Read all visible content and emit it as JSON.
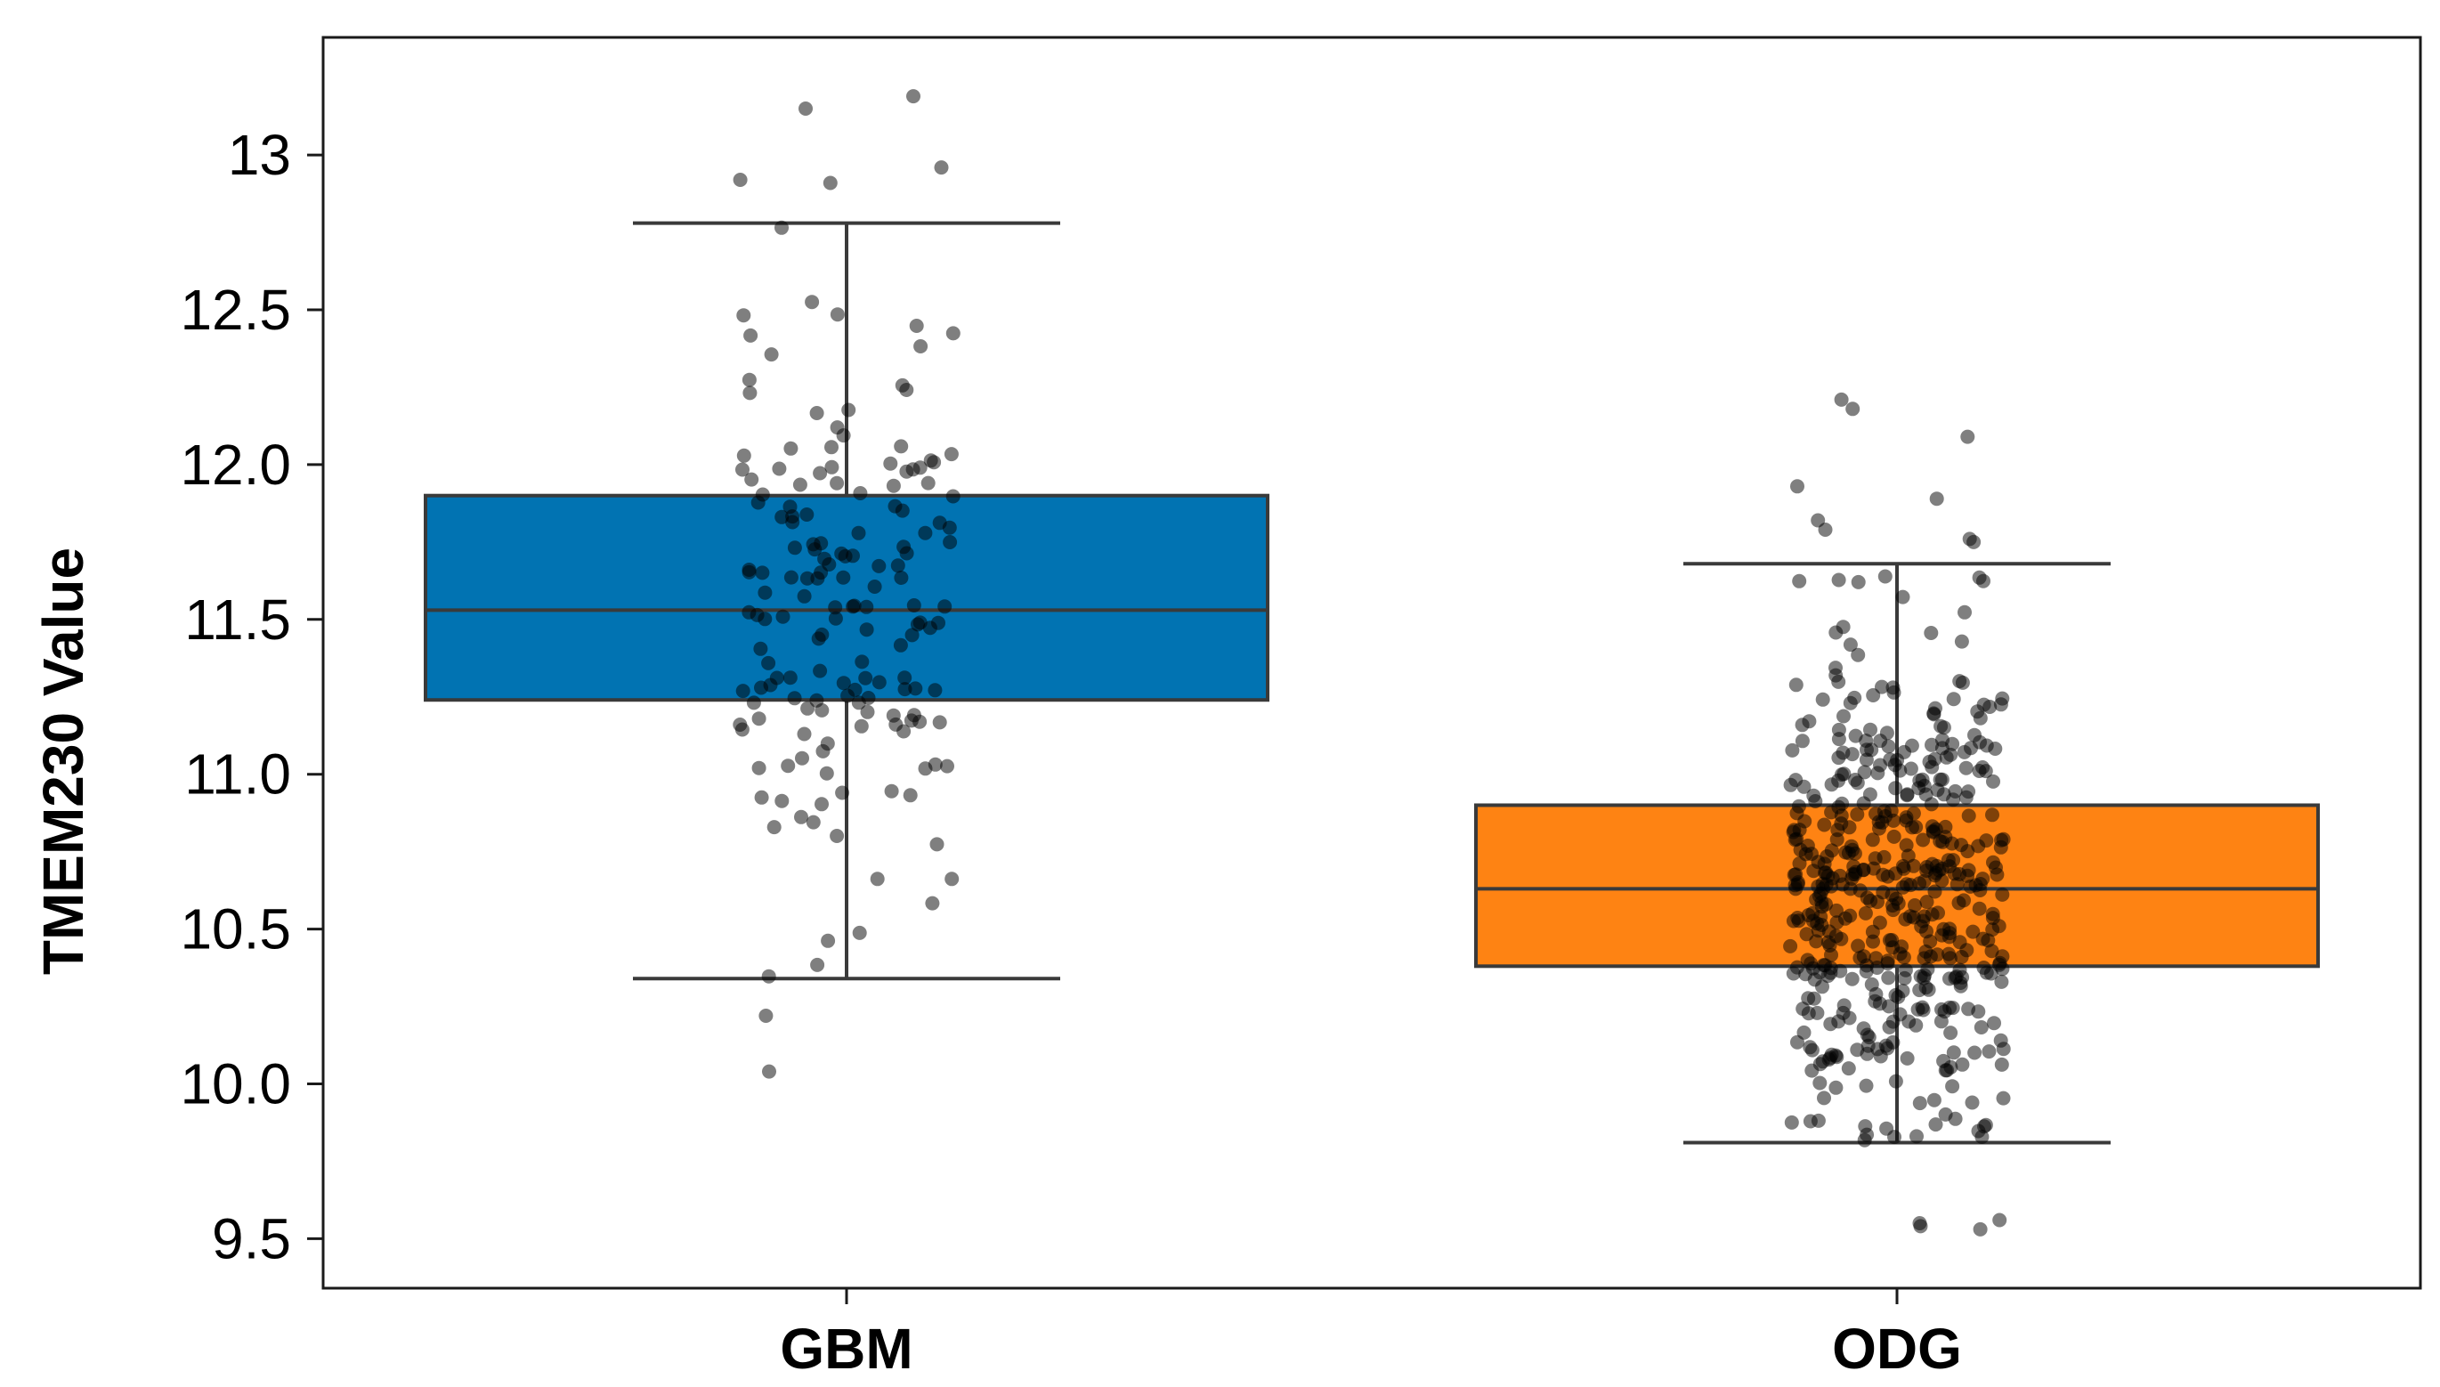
{
  "chart_data": {
    "type": "box",
    "title": "",
    "xlabel": "",
    "ylabel": "TMEM230 Value",
    "ylim": [
      9.34,
      13.38
    ],
    "yticks": [
      {
        "value": 9.5,
        "label": "9.5"
      },
      {
        "value": 10.0,
        "label": "10.0"
      },
      {
        "value": 10.5,
        "label": "10.5"
      },
      {
        "value": 11.0,
        "label": "11.0"
      },
      {
        "value": 11.5,
        "label": "11.5"
      },
      {
        "value": 12.0,
        "label": "12.0"
      },
      {
        "value": 12.5,
        "label": "12.5"
      },
      {
        "value": 13.0,
        "label": "13"
      }
    ],
    "categories": [
      "GBM",
      "ODG"
    ],
    "grid": false,
    "legend": "none",
    "boxes": [
      {
        "name": "GBM",
        "color": "#0173b2",
        "whisker_low": 10.34,
        "q1": 11.24,
        "median": 11.53,
        "q3": 11.9,
        "whisker_high": 12.78,
        "outliers": [
          13.15,
          13.19,
          12.92,
          12.96,
          12.91,
          10.22,
          10.04
        ],
        "n_points": 170
      },
      {
        "name": "ODG",
        "color": "#fe8313",
        "whisker_low": 9.81,
        "q1": 10.38,
        "median": 10.63,
        "q3": 10.9,
        "whisker_high": 11.68,
        "outliers": [
          12.21,
          12.18,
          12.09,
          11.93,
          11.89,
          11.82,
          11.79,
          11.76,
          11.75,
          9.55,
          9.53,
          9.56,
          9.54
        ],
        "n_points": 500
      }
    ]
  }
}
